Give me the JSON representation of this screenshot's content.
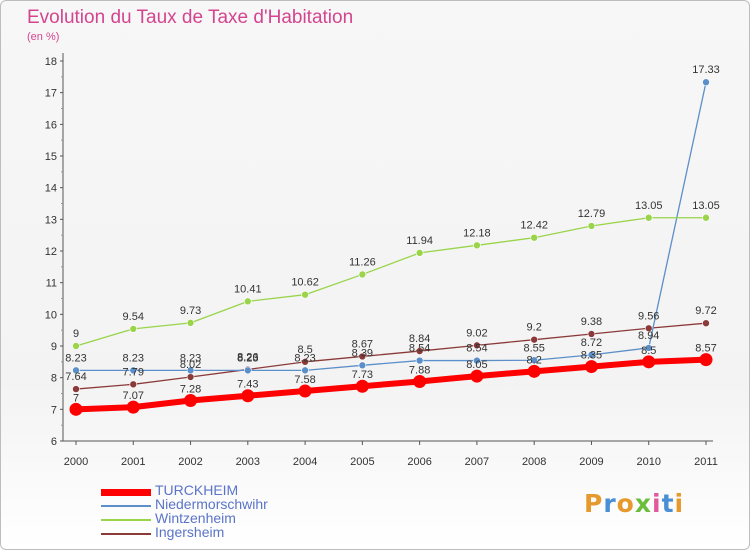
{
  "chart_data": {
    "type": "line",
    "title": "Evolution du Taux de Taxe d'Habitation",
    "unit": "(en %)",
    "x": [
      "2000",
      "2001",
      "2002",
      "2003",
      "2004",
      "2005",
      "2006",
      "2007",
      "2008",
      "2009",
      "2010",
      "2011"
    ],
    "ylim": [
      6,
      18
    ],
    "yticks": [
      "6",
      "7",
      "8",
      "9",
      "10",
      "11",
      "12",
      "13",
      "14",
      "15",
      "16",
      "17",
      "18"
    ],
    "grid": false,
    "legend_position": "bottom-left",
    "series": [
      {
        "name": "TURCKHEIM",
        "color": "#ff0000",
        "values": [
          7,
          7.07,
          7.28,
          7.43,
          7.58,
          7.73,
          7.88,
          8.05,
          8.2,
          8.35,
          8.5,
          8.57
        ],
        "labels": [
          "7",
          "7.07",
          "7.28",
          "7.43",
          "7.58",
          "7.73",
          "7.88",
          "8.05",
          "8.2",
          "8.35",
          "8.5",
          "8.57"
        ]
      },
      {
        "name": "Niedermorschwihr",
        "color": "#5b8fc9",
        "values": [
          8.23,
          8.23,
          8.23,
          8.23,
          8.23,
          8.39,
          8.54,
          8.54,
          8.55,
          8.72,
          8.94,
          17.33
        ],
        "labels": [
          "8.23",
          "8.23",
          "8.23",
          "8.23",
          "8.23",
          "8.39",
          "8.54",
          "8.54",
          "8.55",
          "8.72",
          "8.94",
          "17.33"
        ]
      },
      {
        "name": "Wintzenheim",
        "color": "#99d44a",
        "values": [
          9,
          9.54,
          9.73,
          10.41,
          10.62,
          11.26,
          11.94,
          12.18,
          12.42,
          12.79,
          13.05,
          13.05
        ],
        "labels": [
          "9",
          "9.54",
          "9.73",
          "10.41",
          "10.62",
          "11.26",
          "11.94",
          "12.18",
          "12.42",
          "12.79",
          "13.05",
          "13.05"
        ]
      },
      {
        "name": "Ingersheim",
        "color": "#8b3a3a",
        "values": [
          7.64,
          7.79,
          8.02,
          8.26,
          8.5,
          8.67,
          8.84,
          9.02,
          9.2,
          9.38,
          9.56,
          9.72
        ],
        "labels": [
          "7.64",
          "7.79",
          "8.02",
          "8.26",
          "8.5",
          "8.67",
          "8.84",
          "9.02",
          "9.2",
          "9.38",
          "9.56",
          "9.72"
        ]
      }
    ]
  },
  "logo": {
    "text": "Proxiti",
    "colors": [
      "#e69a2d",
      "#4a8fd6",
      "#e69a2d",
      "#6bbd3c",
      "#e05a9c",
      "#4a8fd6",
      "#e69a2d"
    ]
  }
}
